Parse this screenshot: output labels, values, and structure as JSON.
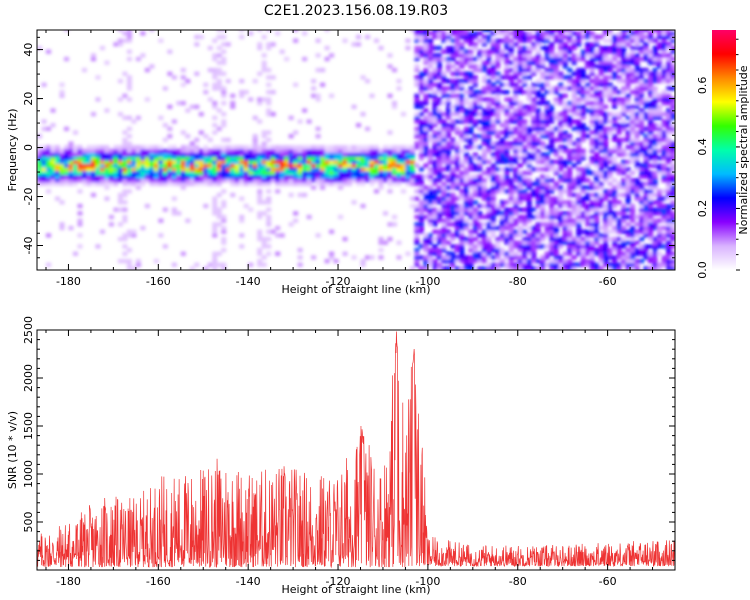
{
  "figure_title": "C2E1.2023.156.08.19.R03",
  "chart_data": [
    {
      "type": "heatmap",
      "title": "",
      "xlabel": "Height of straight line (km)",
      "ylabel": "Frequency (Hz)",
      "xlim": [
        -187,
        -45
      ],
      "ylim": [
        -50,
        48
      ],
      "x_ticks": [
        -180,
        -160,
        -140,
        -120,
        -100,
        -80,
        -60
      ],
      "y_ticks": [
        -40,
        -20,
        0,
        20,
        40
      ],
      "colorbar": {
        "label": "Normalized spectral amplitude",
        "range": [
          0,
          0.78
        ],
        "ticks": [
          0.0,
          0.2,
          0.4,
          0.6
        ],
        "colormap": [
          "#ffffff",
          "#d9b3ff",
          "#8800ff",
          "#0000ff",
          "#00bbff",
          "#00ffaa",
          "#33ff00",
          "#ffff00",
          "#ff8800",
          "#ff0000",
          "#ff0066"
        ]
      },
      "features": {
        "signal_band": {
          "x_range": [
            -187,
            -103
          ],
          "freq_center": -8,
          "freq_halfwidth": 5,
          "peak_amplitude": 0.75
        },
        "noise_region": {
          "x_range": [
            -103,
            -45
          ],
          "amplitude": 0.22
        }
      },
      "grid": false
    },
    {
      "type": "line",
      "title": "",
      "xlabel": "Height of straight line (km)",
      "ylabel": "SNR (10 * v/v)",
      "xlim": [
        -187,
        -45
      ],
      "ylim": [
        0,
        2500
      ],
      "x_ticks": [
        -180,
        -160,
        -140,
        -120,
        -100,
        -80,
        -60
      ],
      "y_ticks": [
        500,
        1000,
        1500,
        2000,
        2500
      ],
      "color": "#ee3333",
      "grid": false,
      "envelope": [
        {
          "x": -187,
          "y": 350
        },
        {
          "x": -180,
          "y": 500
        },
        {
          "x": -172,
          "y": 750
        },
        {
          "x": -165,
          "y": 720
        },
        {
          "x": -160,
          "y": 950
        },
        {
          "x": -150,
          "y": 1050
        },
        {
          "x": -145,
          "y": 1200
        },
        {
          "x": -140,
          "y": 1000
        },
        {
          "x": -132,
          "y": 1100
        },
        {
          "x": -126,
          "y": 1000
        },
        {
          "x": -120,
          "y": 1000
        },
        {
          "x": -115,
          "y": 1500
        },
        {
          "x": -110,
          "y": 1050
        },
        {
          "x": -107,
          "y": 2500
        },
        {
          "x": -105,
          "y": 1700
        },
        {
          "x": -103,
          "y": 2400
        },
        {
          "x": -101,
          "y": 1200
        },
        {
          "x": -100,
          "y": 350
        },
        {
          "x": -90,
          "y": 250
        },
        {
          "x": -70,
          "y": 250
        },
        {
          "x": -45,
          "y": 320
        }
      ]
    }
  ]
}
